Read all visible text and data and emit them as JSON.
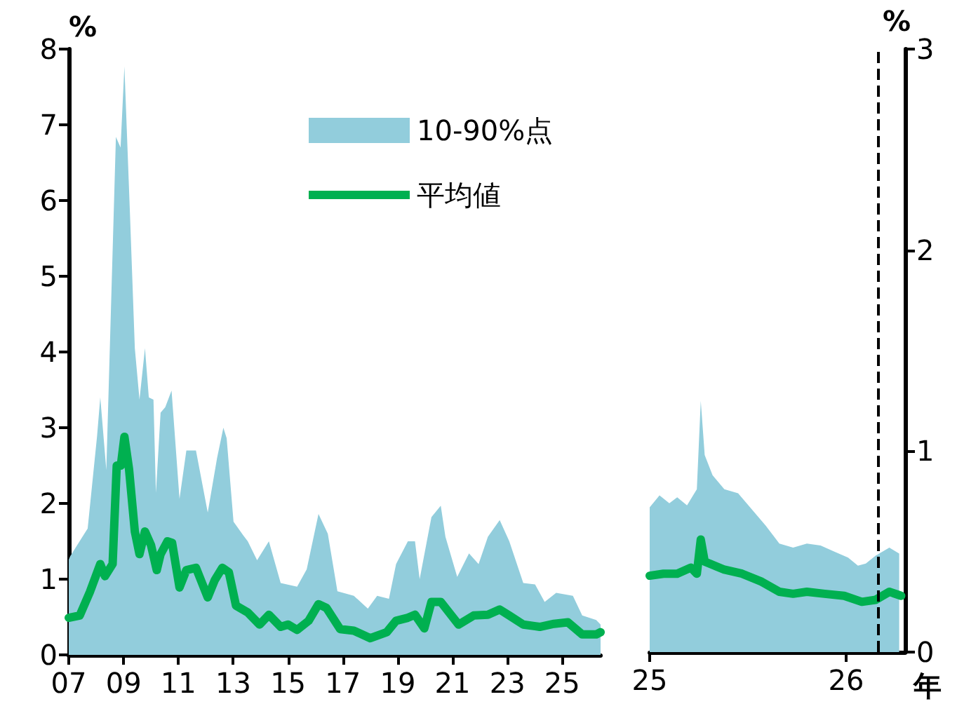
{
  "chart_data": [
    {
      "type": "line",
      "ylabel": "%",
      "ylim": [
        0,
        8
      ],
      "yticks": [
        0,
        1,
        2,
        3,
        4,
        5,
        6,
        7,
        8
      ],
      "xlim": [
        2007,
        2026.4
      ],
      "xticks": [
        {
          "value": 2007,
          "label": "07"
        },
        {
          "value": 2009,
          "label": "09"
        },
        {
          "value": 2011,
          "label": "11"
        },
        {
          "value": 2013,
          "label": "13"
        },
        {
          "value": 2015,
          "label": "15"
        },
        {
          "value": 2017,
          "label": "17"
        },
        {
          "value": 2019,
          "label": "19"
        },
        {
          "value": 2021,
          "label": "21"
        },
        {
          "value": 2023,
          "label": "23"
        },
        {
          "value": 2025,
          "label": "25"
        }
      ],
      "legend": "top",
      "marker": "none",
      "series": [
        {
          "name": "10-90%点",
          "type": "area",
          "color": "#92cddc",
          "x": [
            2007.0,
            2007.05,
            2007.69,
            2008.03,
            2008.15,
            2008.37,
            2008.72,
            2008.89,
            2009.03,
            2009.23,
            2009.41,
            2009.58,
            2009.78,
            2009.92,
            2010.09,
            2010.18,
            2010.35,
            2010.52,
            2010.75,
            2011.04,
            2011.29,
            2011.64,
            2012.07,
            2012.41,
            2012.64,
            2012.76,
            2013.01,
            2013.36,
            2013.53,
            2013.87,
            2014.3,
            2014.73,
            2015.33,
            2015.68,
            2016.11,
            2016.45,
            2016.8,
            2017.4,
            2017.91,
            2018.25,
            2018.68,
            2018.94,
            2019.37,
            2019.63,
            2019.8,
            2020.23,
            2020.57,
            2020.74,
            2021.17,
            2021.6,
            2021.95,
            2022.29,
            2022.72,
            2023.07,
            2023.58,
            2024.01,
            2024.36,
            2024.78,
            2025.39,
            2025.73,
            2026.24,
            2026.4
          ],
          "values": [
            1.26,
            1.3,
            1.67,
            2.88,
            3.4,
            2.44,
            6.84,
            6.7,
            7.77,
            5.85,
            4.05,
            3.37,
            4.05,
            3.4,
            3.37,
            2.14,
            3.2,
            3.27,
            3.49,
            2.06,
            2.7,
            2.7,
            1.88,
            2.6,
            3.0,
            2.86,
            1.76,
            1.58,
            1.5,
            1.25,
            1.5,
            0.95,
            0.9,
            1.13,
            1.86,
            1.6,
            0.84,
            0.78,
            0.61,
            0.78,
            0.74,
            1.2,
            1.5,
            1.5,
            1.0,
            1.82,
            1.97,
            1.56,
            1.03,
            1.34,
            1.2,
            1.56,
            1.78,
            1.5,
            0.95,
            0.93,
            0.7,
            0.82,
            0.78,
            0.52,
            0.46,
            0.4
          ]
        },
        {
          "name": "平均値",
          "type": "line",
          "color": "#00b050",
          "x": [
            2007.0,
            2007.4,
            2007.77,
            2008.15,
            2008.32,
            2008.6,
            2008.75,
            2008.9,
            2009.03,
            2009.2,
            2009.41,
            2009.58,
            2009.78,
            2010.0,
            2010.21,
            2010.35,
            2010.6,
            2010.77,
            2011.04,
            2011.29,
            2011.64,
            2012.07,
            2012.33,
            2012.6,
            2012.84,
            2013.1,
            2013.53,
            2013.96,
            2014.3,
            2014.73,
            2015.0,
            2015.33,
            2015.75,
            2016.11,
            2016.4,
            2016.9,
            2017.4,
            2018.0,
            2018.6,
            2018.94,
            2019.37,
            2019.63,
            2019.97,
            2020.23,
            2020.57,
            2021.22,
            2021.77,
            2022.29,
            2022.72,
            2023.07,
            2023.58,
            2024.18,
            2024.7,
            2025.21,
            2025.73,
            2026.24,
            2026.4
          ],
          "values": [
            0.49,
            0.52,
            0.83,
            1.2,
            1.04,
            1.2,
            2.5,
            2.5,
            2.88,
            2.45,
            1.63,
            1.33,
            1.63,
            1.45,
            1.12,
            1.33,
            1.5,
            1.48,
            0.89,
            1.12,
            1.15,
            0.76,
            0.99,
            1.15,
            1.09,
            0.65,
            0.56,
            0.4,
            0.53,
            0.37,
            0.4,
            0.33,
            0.45,
            0.67,
            0.62,
            0.34,
            0.32,
            0.22,
            0.3,
            0.45,
            0.49,
            0.53,
            0.35,
            0.7,
            0.7,
            0.4,
            0.52,
            0.53,
            0.6,
            0.52,
            0.4,
            0.37,
            0.41,
            0.43,
            0.27,
            0.27,
            0.3
          ]
        }
      ]
    },
    {
      "type": "line",
      "xlabel": "年",
      "y2label": "%",
      "y2lim": [
        0,
        3
      ],
      "y2ticks": [
        0,
        1,
        2,
        3
      ],
      "xlim": [
        2025,
        2026.3
      ],
      "xticks": [
        {
          "value": 2025,
          "label": "25"
        },
        {
          "value": 2026,
          "label": "26"
        }
      ],
      "marker": "none",
      "ref_lines": [
        {
          "axis": "x",
          "value": 2026.16,
          "color": "#000000",
          "line_style": "dashed"
        }
      ],
      "series": [
        {
          "type": "area",
          "axis": "y2",
          "color": "#92cddc",
          "x": [
            2025.0,
            2025.05,
            2025.1,
            2025.14,
            2025.19,
            2025.24,
            2025.26,
            2025.28,
            2025.32,
            2025.38,
            2025.45,
            2025.52,
            2025.59,
            2025.66,
            2025.73,
            2025.8,
            2025.87,
            2025.94,
            2026.01,
            2026.06,
            2026.1,
            2026.15,
            2026.22,
            2026.27
          ],
          "values": [
            0.72,
            0.78,
            0.74,
            0.77,
            0.73,
            0.81,
            1.25,
            0.98,
            0.88,
            0.81,
            0.79,
            0.71,
            0.63,
            0.54,
            0.52,
            0.54,
            0.53,
            0.5,
            0.47,
            0.43,
            0.44,
            0.48,
            0.52,
            0.49
          ]
        },
        {
          "type": "line",
          "axis": "y2",
          "color": "#00b050",
          "x": [
            2025.0,
            2025.07,
            2025.14,
            2025.21,
            2025.24,
            2025.26,
            2025.28,
            2025.38,
            2025.47,
            2025.57,
            2025.66,
            2025.73,
            2025.8,
            2025.89,
            2025.99,
            2026.08,
            2026.15,
            2026.22,
            2026.28
          ],
          "values": [
            0.38,
            0.39,
            0.39,
            0.42,
            0.39,
            0.56,
            0.45,
            0.41,
            0.39,
            0.35,
            0.3,
            0.29,
            0.3,
            0.29,
            0.28,
            0.25,
            0.26,
            0.3,
            0.28
          ]
        }
      ]
    }
  ]
}
